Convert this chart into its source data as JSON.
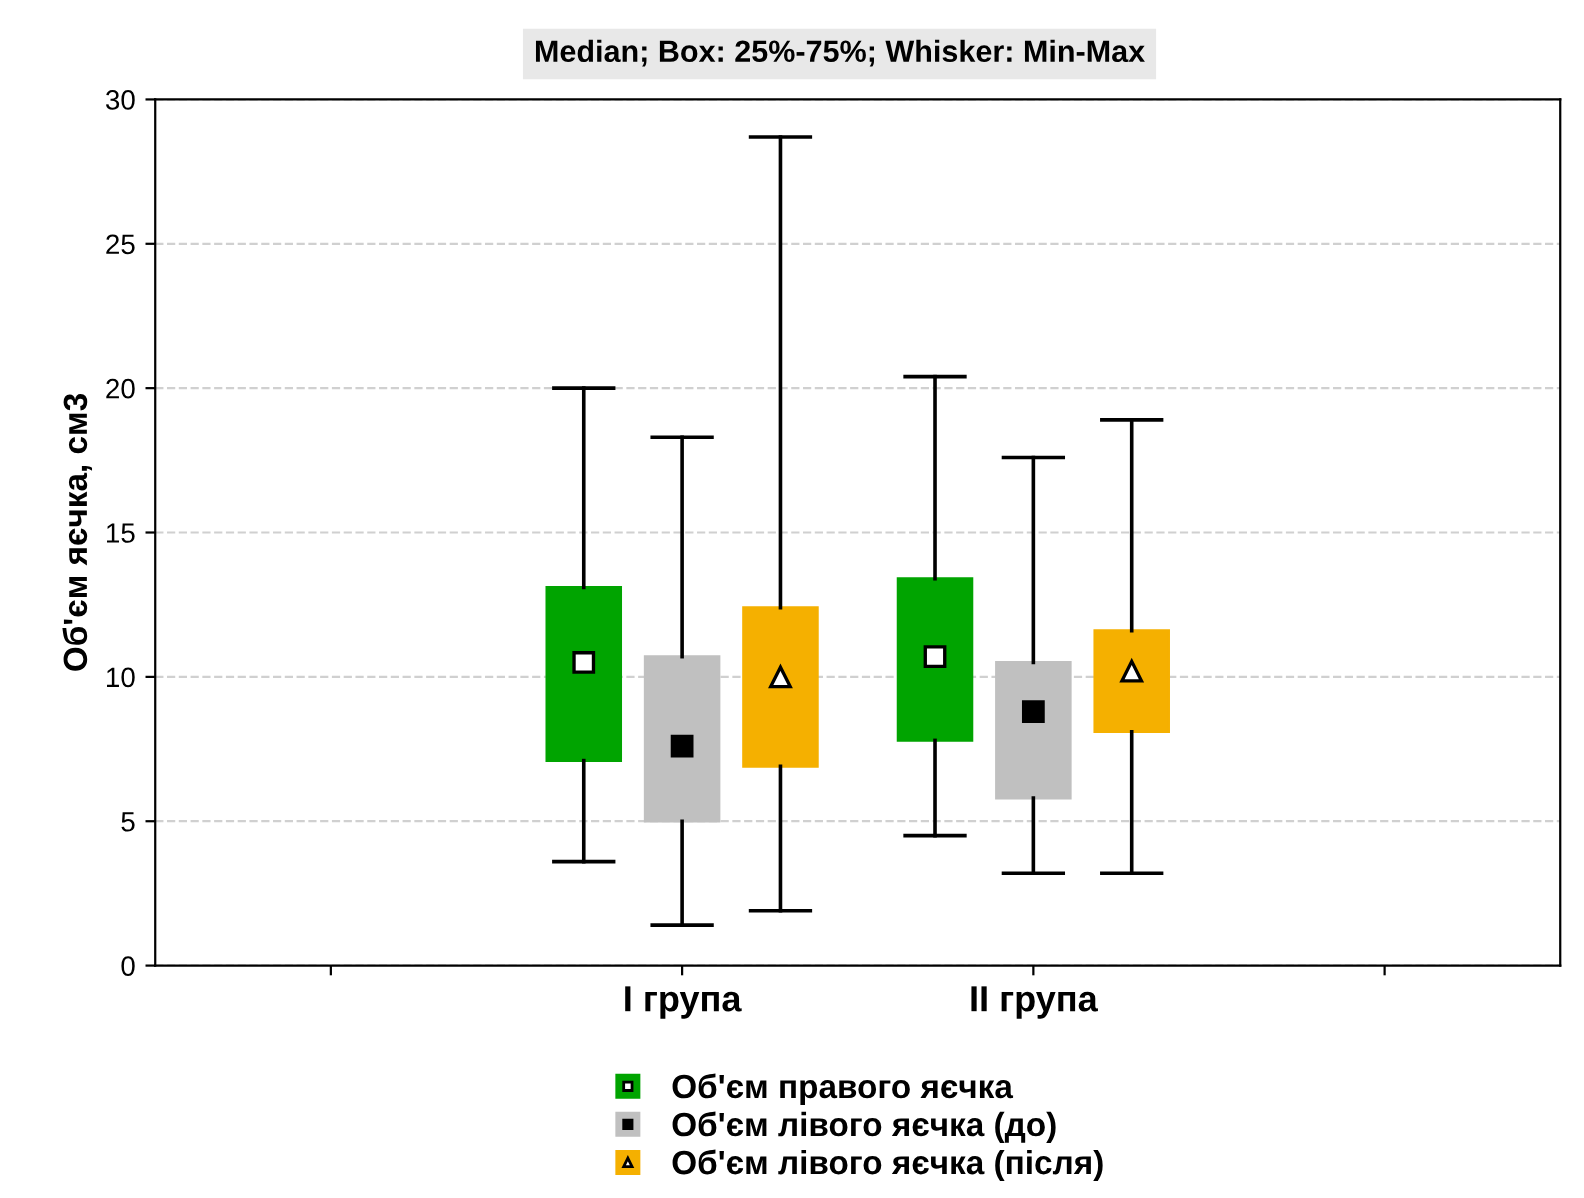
{
  "chart_data": {
    "type": "box",
    "title": "Median; Box: 25%-75%; Whisker: Min-Max",
    "ylabel": "Об'єм яєчка, см3",
    "categories": [
      null,
      "I група",
      "II група",
      null
    ],
    "ylim": [
      0,
      30
    ],
    "yticks": [
      0,
      5,
      10,
      15,
      20,
      25,
      30
    ],
    "grid": "y",
    "legend": "bottom",
    "series": [
      {
        "name": "Об'єм правого яєчка",
        "color": "#00a400",
        "marker": "square",
        "boxes": [
          null,
          {
            "low": 3.6,
            "q1": 7.1,
            "median": 10.5,
            "q3": 13.1,
            "high": 20.0
          },
          {
            "low": 4.5,
            "q1": 7.8,
            "median": 10.7,
            "q3": 13.4,
            "high": 20.4
          },
          null
        ]
      },
      {
        "name": "Об'єм лівого яєчка (до)",
        "color": "#c0c0c0",
        "marker": "square",
        "boxes": [
          null,
          {
            "low": 1.4,
            "q1": 5.0,
            "median": 7.6,
            "q3": 10.7,
            "high": 18.3
          },
          {
            "low": 3.2,
            "q1": 5.8,
            "median": 8.8,
            "q3": 10.5,
            "high": 17.6
          },
          null
        ]
      },
      {
        "name": "Об'єм лівого яєчка (після)",
        "color": "#f5b000",
        "marker": "triangle",
        "boxes": [
          null,
          {
            "low": 1.9,
            "q1": 6.9,
            "median": 10.0,
            "q3": 12.4,
            "high": 28.7
          },
          {
            "low": 3.2,
            "q1": 8.1,
            "median": 10.2,
            "q3": 11.6,
            "high": 18.9
          },
          null
        ]
      }
    ]
  }
}
